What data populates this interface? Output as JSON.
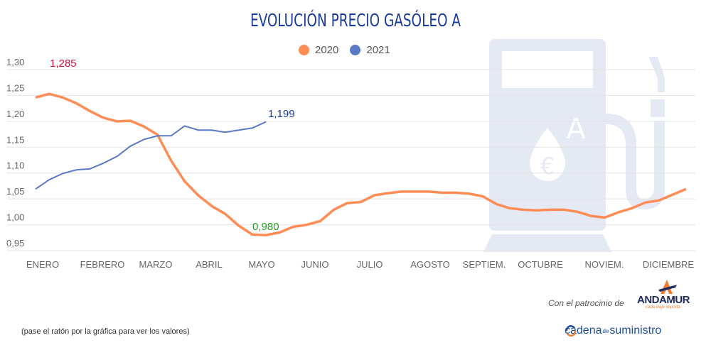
{
  "chart_data": {
    "type": "line",
    "title": "EVOLUCIÓN PRECIO GASÓLEO A",
    "legend_position": "top",
    "grid": true,
    "ylim": [
      0.95,
      1.3
    ],
    "yticks": [
      "1,30",
      "1,25",
      "1,20",
      "1,15",
      "1,10",
      "1,05",
      "1,00",
      "0,95"
    ],
    "ytick_values": [
      1.3,
      1.25,
      1.2,
      1.15,
      1.1,
      1.05,
      1.0,
      0.95
    ],
    "xticks": [
      "ENERO",
      "FEBRERO",
      "MARZO",
      "ABRIL",
      "MAYO",
      "JUNIO",
      "JULIO",
      "AGOSTO",
      "SEPTIEM.",
      "OCTUBRE",
      "NOVIEM.",
      "DICIEMBRE"
    ],
    "series": [
      {
        "name": "2020",
        "color": "#ff8c55",
        "values": [
          1.246,
          1.253,
          1.246,
          1.235,
          1.22,
          1.207,
          1.2,
          1.201,
          1.19,
          1.174,
          1.124,
          1.084,
          1.057,
          1.036,
          1.021,
          0.998,
          0.981,
          0.98,
          0.985,
          0.996,
          1.0,
          1.007,
          1.029,
          1.042,
          1.044,
          1.057,
          1.061,
          1.064,
          1.064,
          1.064,
          1.062,
          1.062,
          1.06,
          1.055,
          1.04,
          1.032,
          1.029,
          1.028,
          1.029,
          1.029,
          1.025,
          1.017,
          1.014,
          1.024,
          1.032,
          1.043,
          1.047,
          1.058,
          1.069
        ]
      },
      {
        "name": "2021",
        "color": "#5a78c8",
        "values": [
          1.069,
          1.087,
          1.099,
          1.106,
          1.108,
          1.119,
          1.132,
          1.152,
          1.165,
          1.172,
          1.172,
          1.191,
          1.183,
          1.183,
          1.179,
          1.183,
          1.187,
          1.199
        ]
      }
    ],
    "annotations": [
      {
        "text": "1,285",
        "color": "#d0103a"
      },
      {
        "text": "0,980",
        "color": "#22a022"
      },
      {
        "text": "1,199",
        "color": "#1a3a9c"
      }
    ]
  },
  "footer": {
    "note": "(pase el ratón por la gráfica para ver los valores)",
    "sponsor": "Con el patrocinio de",
    "sponsor_logo": "ANDAMUR",
    "sponsor_tagline": "cada viaje importa",
    "brand_a": "cadena",
    "brand_b": "de",
    "brand_c": "suministro"
  },
  "background_icon": "fuel-pump-icon"
}
